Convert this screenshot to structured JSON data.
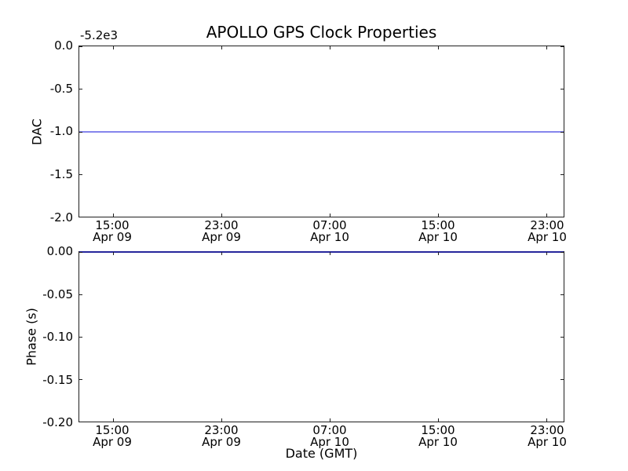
{
  "figure": {
    "title": "APOLLO GPS Clock Properties",
    "background": "#ffffff",
    "spine_color": "#1f1f1f"
  },
  "chart_data": [
    {
      "type": "line",
      "plot": "top",
      "title": "APOLLO GPS Clock Properties",
      "ylabel": "DAC",
      "y_offset_text": "-5.2e3",
      "ylim": [
        -2.0,
        0.0
      ],
      "grid": false,
      "legend": "none",
      "yticks": [
        "0.0",
        "-0.5",
        "-1.0",
        "-1.5",
        "-2.0"
      ],
      "xticks": [
        {
          "time": "15:00",
          "date": "Apr 09"
        },
        {
          "time": "23:00",
          "date": "Apr 09"
        },
        {
          "time": "07:00",
          "date": "Apr 10"
        },
        {
          "time": "15:00",
          "date": "Apr 10"
        },
        {
          "time": "23:00",
          "date": "Apr 10"
        }
      ],
      "series": [
        {
          "name": "DAC",
          "color": "#0000ff",
          "shape": "constant-horizontal-line",
          "value": -1.0
        }
      ]
    },
    {
      "type": "line",
      "plot": "bottom",
      "xlabel": "Date (GMT)",
      "ylabel": "Phase (s)",
      "ylim": [
        -0.2,
        0.0
      ],
      "grid": false,
      "legend": "none",
      "yticks": [
        "0.00",
        "-0.05",
        "-0.10",
        "-0.15",
        "-0.20"
      ],
      "xticks": [
        {
          "time": "15:00",
          "date": "Apr 09"
        },
        {
          "time": "23:00",
          "date": "Apr 09"
        },
        {
          "time": "07:00",
          "date": "Apr 10"
        },
        {
          "time": "15:00",
          "date": "Apr 10"
        },
        {
          "time": "23:00",
          "date": "Apr 10"
        }
      ],
      "series": [
        {
          "name": "Phase",
          "color": "#0000ff",
          "shape": "constant-horizontal-line",
          "value": 0.0
        }
      ]
    }
  ]
}
